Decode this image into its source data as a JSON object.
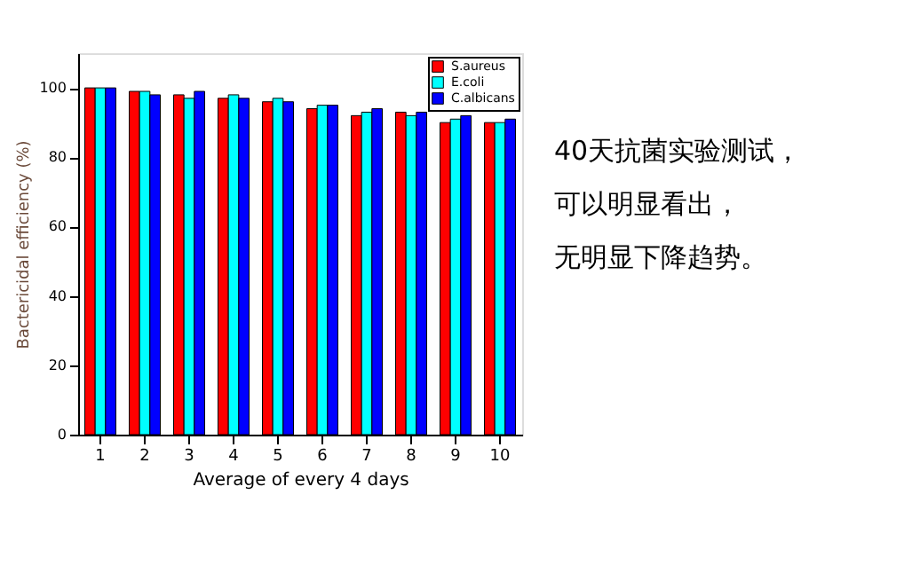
{
  "chart_data": {
    "type": "bar",
    "xlabel": "Average of every 4 days",
    "ylabel": "Bactericidal efficiency (%)",
    "categories": [
      "1",
      "2",
      "3",
      "4",
      "5",
      "6",
      "7",
      "8",
      "9",
      "10"
    ],
    "series": [
      {
        "name": "S.aureus",
        "color": "#ff0000",
        "values": [
          100,
          99,
          98,
          97,
          96,
          94,
          92,
          93,
          90,
          90
        ]
      },
      {
        "name": "E.coli",
        "color": "#00ffff",
        "values": [
          100,
          99,
          97,
          98,
          97,
          95,
          93,
          92,
          91,
          90
        ]
      },
      {
        "name": "C.albicans",
        "color": "#0000ff",
        "values": [
          100,
          98,
          99,
          97,
          96,
          95,
          94,
          93,
          92,
          91
        ]
      }
    ],
    "ylim": [
      0,
      110
    ],
    "yticks": [
      0,
      20,
      40,
      60,
      80,
      100
    ],
    "grid": false,
    "legend": "top right",
    "annotations": [
      "40天抗菌实验测试，",
      "可以明显看出，",
      "无明显下降趋势。"
    ]
  }
}
